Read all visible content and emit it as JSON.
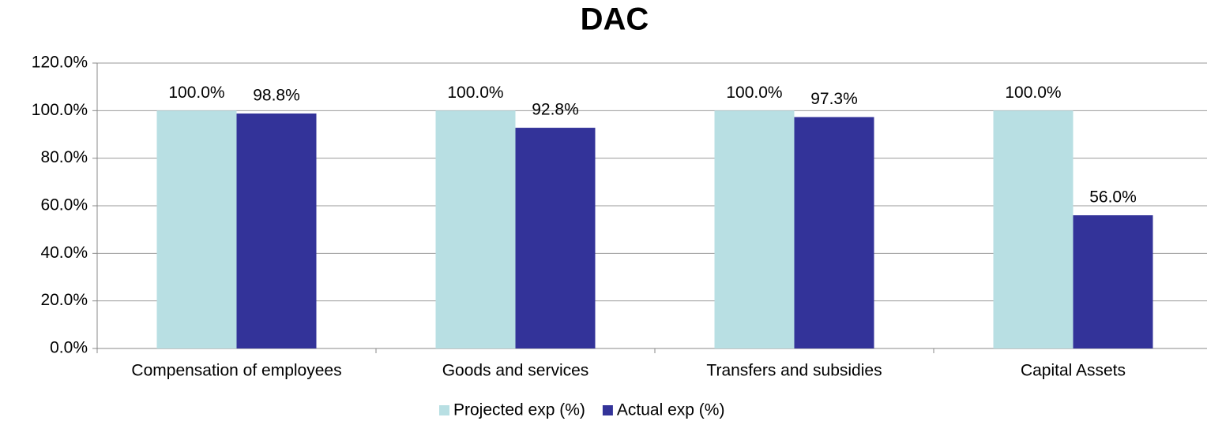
{
  "chart_data": {
    "type": "bar",
    "title": "DAC",
    "categories": [
      "Compensation of employees",
      "Goods and services",
      "Transfers and subsidies",
      "Capital Assets"
    ],
    "series": [
      {
        "name": "Projected exp (%)",
        "color": "#b8dfe3",
        "values": [
          100,
          100,
          100,
          100
        ],
        "value_labels": [
          "100.0%",
          "100.0%",
          "100.0%",
          "100.0%"
        ]
      },
      {
        "name": "Actual exp (%)",
        "color": "#333399",
        "values": [
          98.8,
          92.8,
          97.3,
          56.0
        ],
        "value_labels": [
          "98.8%",
          "92.8%",
          "97.3%",
          "56.0%"
        ]
      }
    ],
    "ylim": [
      0,
      120
    ],
    "yticks": [
      {
        "value": 0,
        "label": "0.0%"
      },
      {
        "value": 20,
        "label": "20.0%"
      },
      {
        "value": 40,
        "label": "40.0%"
      },
      {
        "value": 60,
        "label": "60.0%"
      },
      {
        "value": 80,
        "label": "80.0%"
      },
      {
        "value": 100,
        "label": "100.0%"
      },
      {
        "value": 120,
        "label": "120.0%"
      }
    ],
    "grid": true,
    "legend": "bottom"
  }
}
